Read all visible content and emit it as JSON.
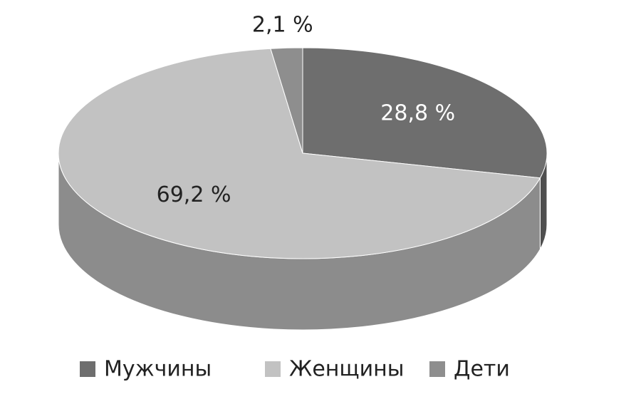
{
  "chart_data": {
    "type": "pie3d",
    "categories": [
      "Мужчины",
      "Женщины",
      "Дети"
    ],
    "values": [
      28.8,
      69.2,
      2.1
    ],
    "value_labels": [
      "28,8 %",
      "69,2 %",
      "2,1 %"
    ],
    "colors": [
      "#6e6e6e",
      "#c2c2c2",
      "#8e8e8e"
    ],
    "legend": "bottom"
  }
}
